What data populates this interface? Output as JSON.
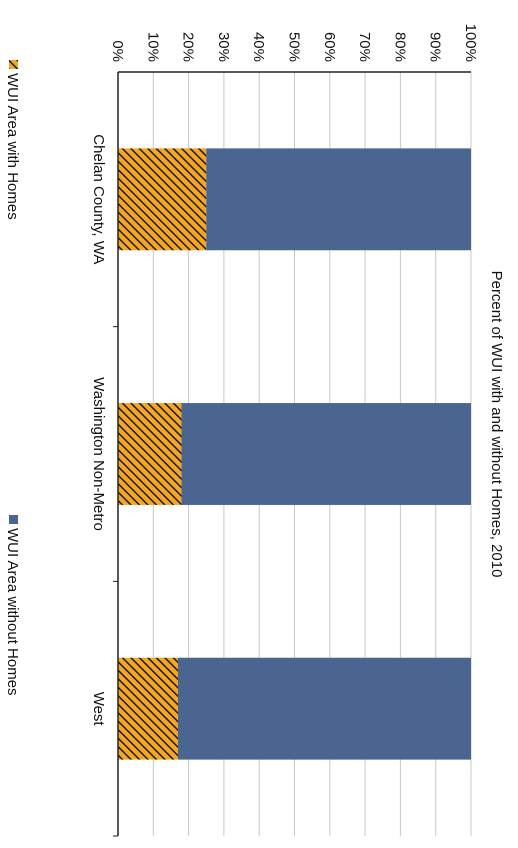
{
  "chart_data": {
    "type": "bar",
    "stacked": true,
    "orientation": "rotated-90-clockwise",
    "title": "Percent of WUI with and without Homes, 2010",
    "categories": [
      "Chelan County, WA",
      "Washington Non-Metro",
      "West"
    ],
    "series": [
      {
        "name": "WUI Area with Homes",
        "values": [
          25,
          18,
          17
        ],
        "color": "#f5a623",
        "pattern": "hatched"
      },
      {
        "name": "WUI Area without Homes",
        "values": [
          75,
          82,
          83
        ],
        "color": "#4a6590"
      }
    ],
    "y_ticks": [
      "0%",
      "10%",
      "20%",
      "30%",
      "40%",
      "50%",
      "60%",
      "70%",
      "80%",
      "90%",
      "100%"
    ],
    "ylim": [
      0,
      100
    ],
    "grid": true,
    "legend_position": "bottom"
  }
}
